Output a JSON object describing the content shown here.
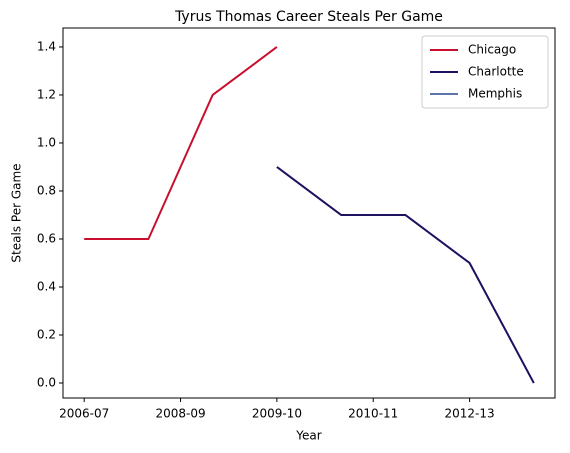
{
  "chart_data": {
    "type": "line",
    "title": "Tyrus Thomas Career Steals Per Game",
    "xlabel": "Year",
    "ylabel": "Steals Per Game",
    "series": [
      {
        "name": "Chicago",
        "color": "#c8102e",
        "x": [
          0,
          1,
          2,
          3
        ],
        "values": [
          0.6,
          0.6,
          1.2,
          1.4
        ]
      },
      {
        "name": "Charlotte",
        "color": "#1d1160",
        "x": [
          3,
          4,
          5,
          6,
          7
        ],
        "values": [
          0.9,
          0.7,
          0.7,
          0.5,
          0.0
        ]
      },
      {
        "name": "Memphis",
        "color": "#5d76a9",
        "x": [],
        "values": []
      }
    ],
    "xlim": [
      -0.33,
      7.33
    ],
    "xticks": [
      {
        "value": 0,
        "label": "2006-07"
      },
      {
        "value": 1.5,
        "label": "2008-09"
      },
      {
        "value": 3,
        "label": "2009-10"
      },
      {
        "value": 4.5,
        "label": "2010-11"
      },
      {
        "value": 6,
        "label": "2012-13"
      }
    ],
    "ylim": [
      -0.0625,
      1.479
    ],
    "yticks": [
      {
        "value": 0,
        "label": "0.0"
      },
      0.2,
      0.4,
      0.6,
      0.8,
      {
        "value": 1,
        "label": "1.0"
      },
      1.2,
      1.4
    ],
    "legend": "upper right",
    "grid": false
  }
}
